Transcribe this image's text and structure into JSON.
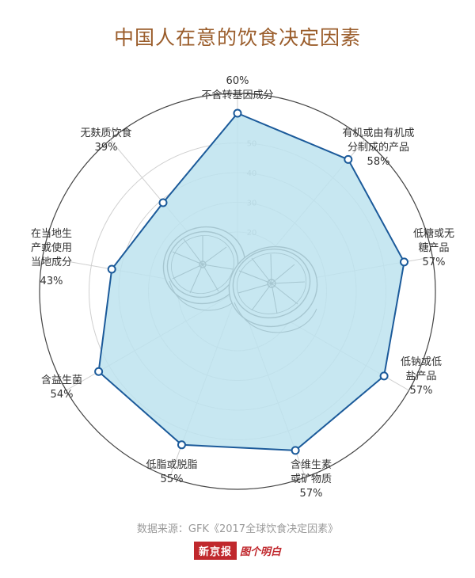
{
  "title": "中国人在意的饮食决定因素",
  "source": "数据来源：GFK《2017全球饮食决定因素》",
  "logo": {
    "main": "新京报",
    "sub": "图个明白"
  },
  "colors": {
    "fill": "#bde3ee",
    "stroke": "#1b5a9a",
    "grid": "#cfcfcf",
    "outer": "#444444",
    "title": "#9a5c2a"
  },
  "chart_data": {
    "type": "radar",
    "title": "中国人在意的饮食决定因素",
    "rmax": 60,
    "ticks": [
      20,
      30,
      40,
      50
    ],
    "tick_labels": [
      "20",
      "30",
      "40",
      "50"
    ],
    "categories": [
      "不含转基因成分",
      "有机或由有机成分制成的产品",
      "低糖或无糖产品",
      "低钠或低盐产品",
      "含维生素或矿物质",
      "低脂或脱脂",
      "含益生菌",
      "在当地生产或使用当地成分",
      "无麸质饮食"
    ],
    "values": [
      60,
      58,
      57,
      57,
      57,
      55,
      54,
      43,
      39
    ],
    "value_labels": [
      "60%",
      "58%",
      "57%",
      "57%",
      "57%",
      "55%",
      "54%",
      "43%",
      "39%"
    ],
    "grid": true
  }
}
